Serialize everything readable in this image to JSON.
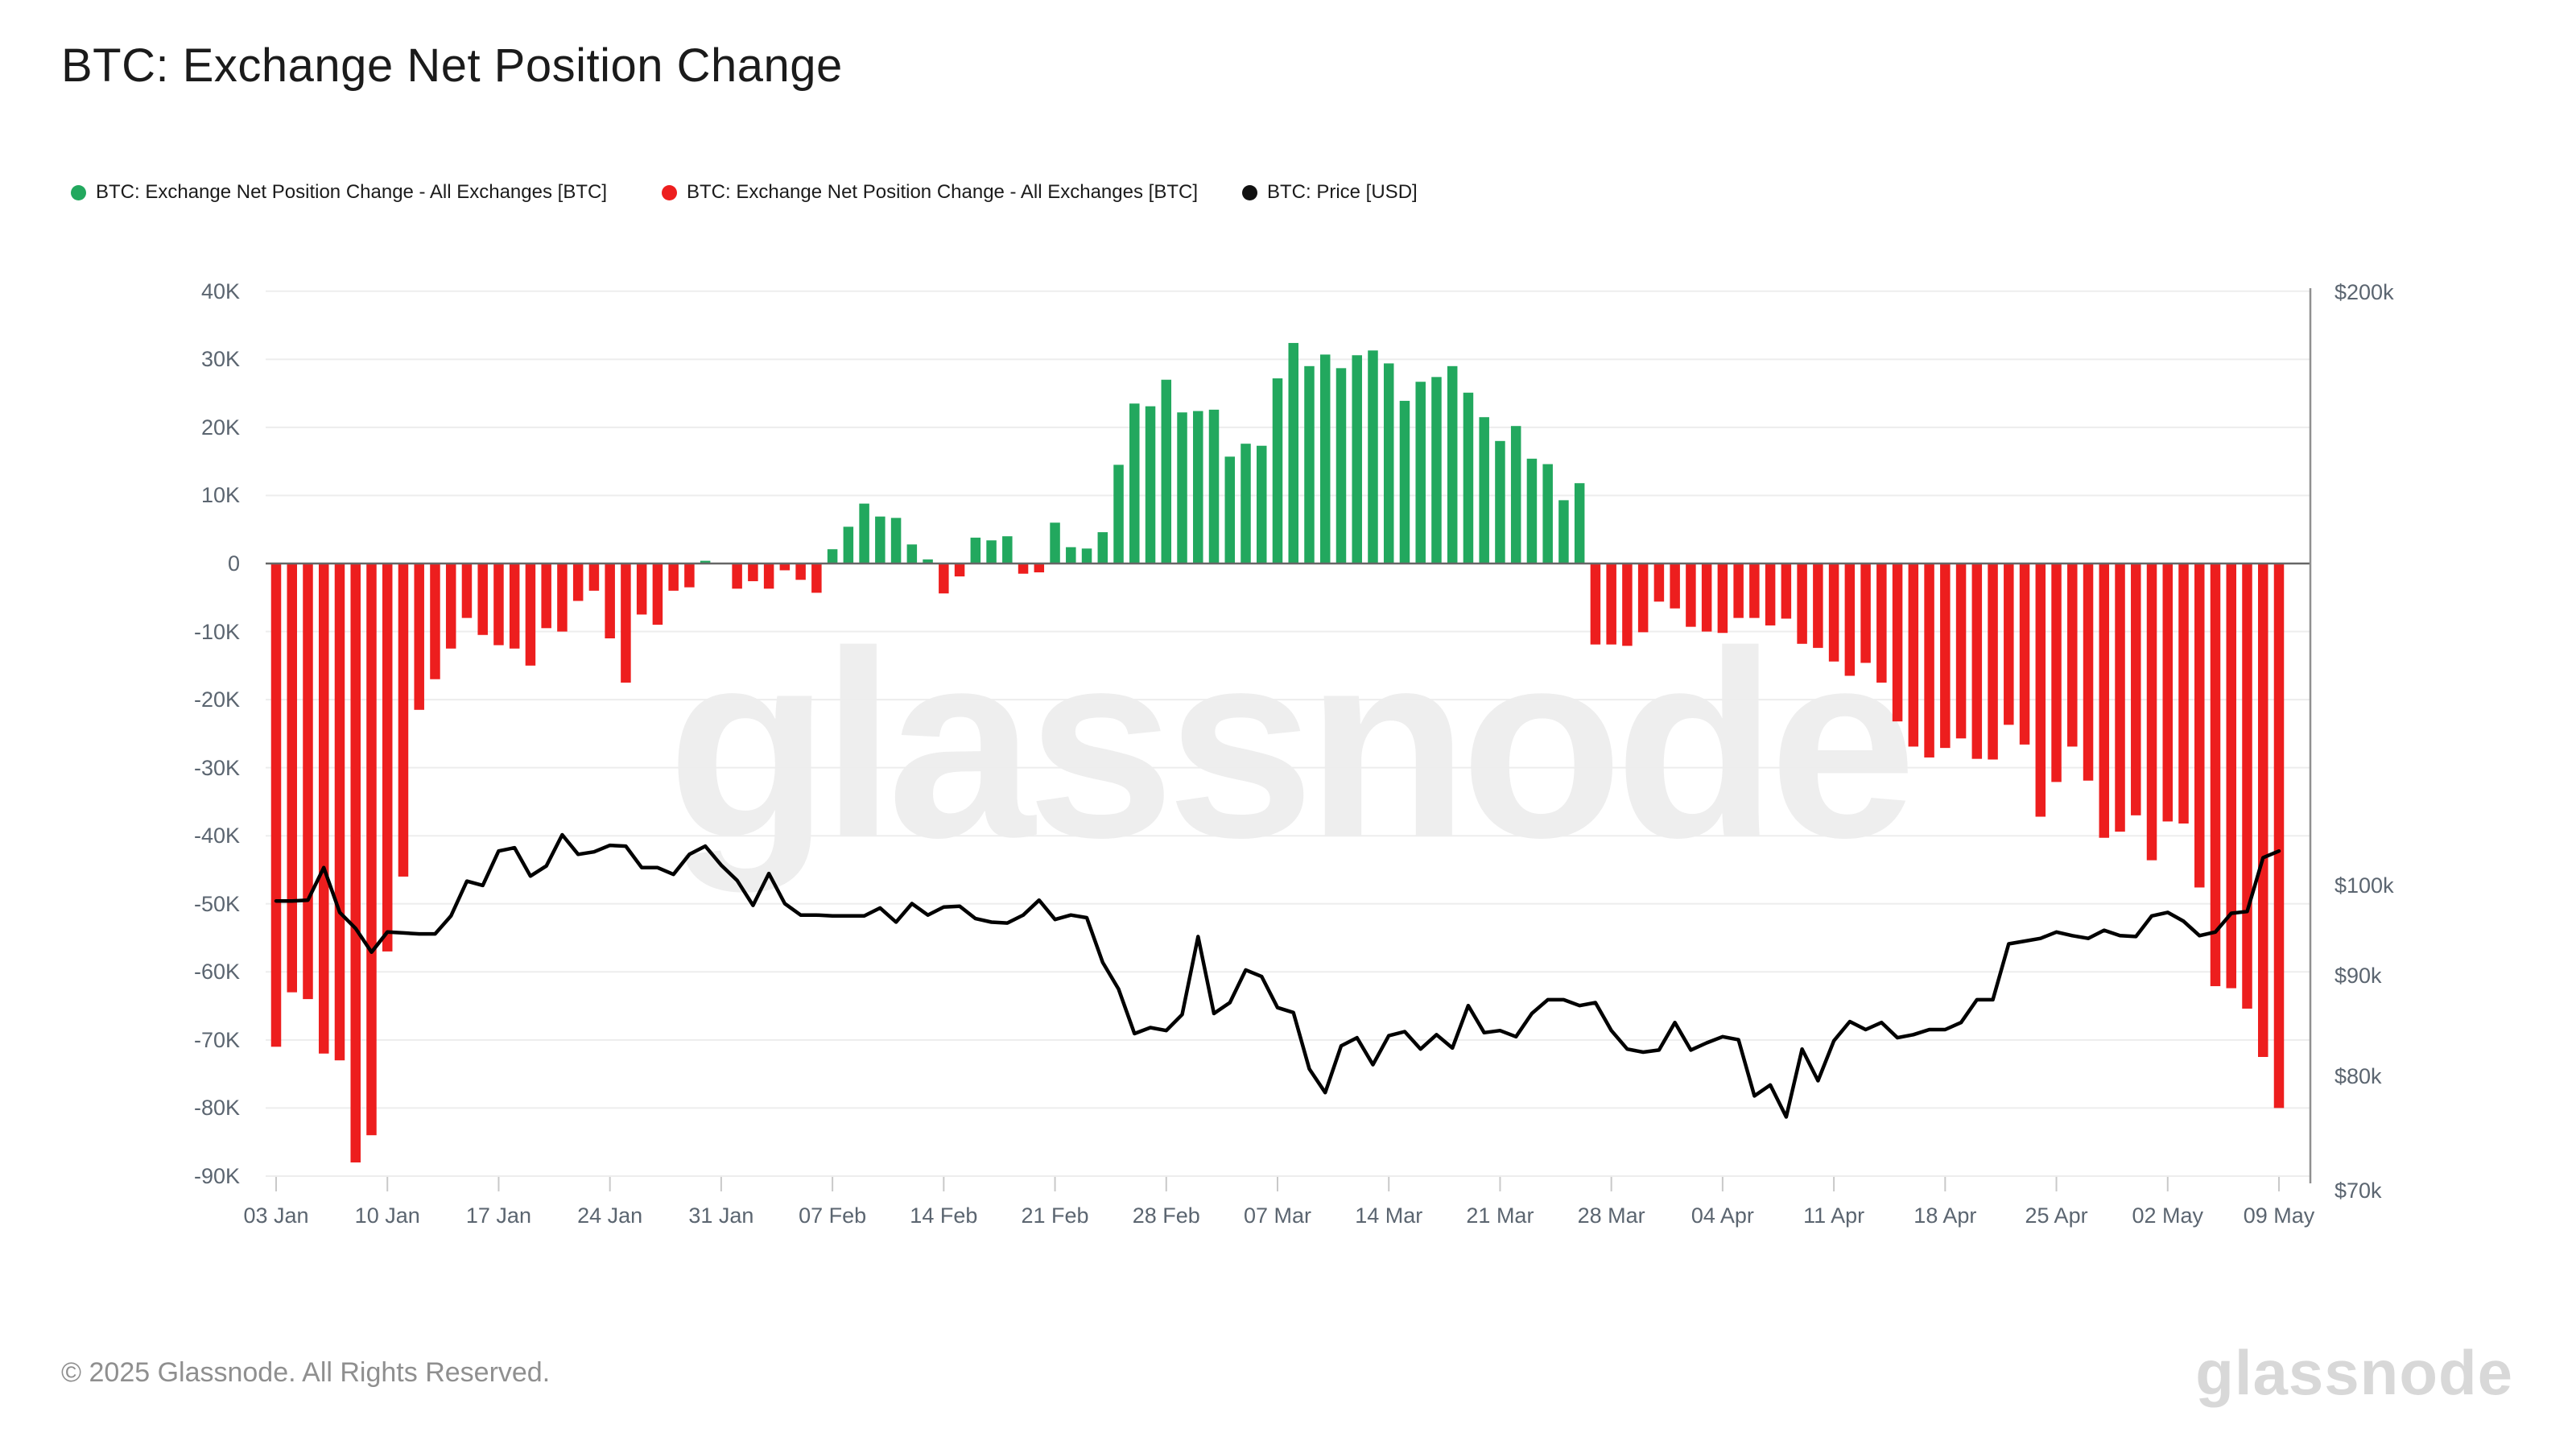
{
  "header": {
    "title": "BTC: Exchange Net Position Change"
  },
  "legend": {
    "items": [
      {
        "label": "BTC: Exchange Net Position Change - All Exchanges [BTC]",
        "color": "#22a85e"
      },
      {
        "label": "BTC: Exchange Net Position Change - All Exchanges [BTC]",
        "color": "#ed1e1e"
      },
      {
        "label": "BTC: Price [USD]",
        "color": "#111111"
      }
    ]
  },
  "watermark": {
    "text": "glassnode"
  },
  "footer": {
    "copyright": "© 2025 Glassnode. All Rights Reserved.",
    "logo_text": "glassnode"
  },
  "chart_data": {
    "type": "bar",
    "title": "BTC: Exchange Net Position Change",
    "start_date": "03 Jan 2025",
    "end_date": "09 May 2025",
    "x_tick_labels": [
      "03 Jan",
      "10 Jan",
      "17 Jan",
      "24 Jan",
      "31 Jan",
      "07 Feb",
      "14 Feb",
      "21 Feb",
      "28 Feb",
      "07 Mar",
      "14 Mar",
      "21 Mar",
      "28 Mar",
      "04 Apr",
      "11 Apr",
      "18 Apr",
      "25 Apr",
      "02 May",
      "09 May"
    ],
    "x_tick_day_indexes": [
      0,
      7,
      14,
      21,
      28,
      35,
      42,
      49,
      56,
      63,
      70,
      77,
      84,
      91,
      98,
      105,
      112,
      119,
      126
    ],
    "y_left": {
      "unit": "BTC",
      "tick_labels": [
        "40K",
        "30K",
        "20K",
        "10K",
        "0",
        "-10K",
        "-20K",
        "-30K",
        "-40K",
        "-50K",
        "-60K",
        "-70K",
        "-80K",
        "-90K"
      ],
      "tick_values_k": [
        40,
        30,
        20,
        10,
        0,
        -10,
        -20,
        -30,
        -40,
        -50,
        -60,
        -70,
        -80,
        -90
      ],
      "range_k": [
        -90,
        40
      ],
      "grid": true
    },
    "y_right": {
      "unit": "USD",
      "scale": "log",
      "tick_labels": [
        "$200k",
        "$100k",
        "$90k",
        "$80k",
        "$70k"
      ],
      "tick_values_k": [
        200,
        100,
        90,
        80,
        70
      ],
      "range_k": [
        70,
        200
      ]
    },
    "series": [
      {
        "name": "BTC: Exchange Net Position Change - All Exchanges [BTC]",
        "type": "bar",
        "axis": "left",
        "unit": "K BTC",
        "positive_color": "#22a85e",
        "negative_color": "#ed1e1e",
        "values": [
          -71,
          -63,
          -64,
          -72,
          -73,
          -88,
          -84,
          -57,
          -46,
          -21.5,
          -17,
          -12.5,
          -8,
          -10.5,
          -12,
          -12.5,
          -15,
          -9.5,
          -10,
          -5.5,
          -4,
          -11,
          -17.5,
          -7.5,
          -9,
          -4,
          -3.5,
          0.4,
          0,
          -3.7,
          -2.6,
          -3.7,
          -1,
          -2.4,
          -4.3,
          2.1,
          5.4,
          8.8,
          6.9,
          6.7,
          2.8,
          0.6,
          -4.4,
          -1.9,
          3.8,
          3.4,
          4,
          -1.5,
          -1.3,
          6,
          2.4,
          2.2,
          4.6,
          14.5,
          23.5,
          23.1,
          27,
          22.2,
          22.4,
          22.6,
          15.7,
          17.6,
          17.3,
          27.2,
          32.4,
          29,
          30.7,
          28.7,
          30.6,
          31.3,
          29.4,
          23.9,
          26.7,
          27.4,
          29,
          25.1,
          21.5,
          18,
          20.2,
          15.4,
          14.6,
          9.3,
          11.8,
          -11.9,
          -11.9,
          -12.1,
          -10.1,
          -5.6,
          -6.6,
          -9.3,
          -10,
          -10.2,
          -8,
          -8,
          -9.1,
          -8.1,
          -11.8,
          -12.4,
          -14.4,
          -16.5,
          -14.6,
          -17.5,
          -23.2,
          -26.9,
          -28.5,
          -27.1,
          -25.7,
          -28.7,
          -28.8,
          -23.7,
          -26.6,
          -37.2,
          -32.1,
          -26.9,
          -31.9,
          -40.3,
          -39.4,
          -37,
          -43.6,
          -37.9,
          -38.2,
          -47.6,
          -62.1,
          -62.4,
          -65.4,
          -72.5,
          -80
        ]
      },
      {
        "name": "BTC: Price [USD]",
        "type": "line",
        "axis": "right",
        "unit": "k USD",
        "color": "#000000",
        "values": [
          98.2,
          98.2,
          98.3,
          102.1,
          96.9,
          95.1,
          92.5,
          94.7,
          94.6,
          94.5,
          94.5,
          96.5,
          100.5,
          100,
          104.1,
          104.5,
          101.1,
          102.3,
          106.1,
          103.7,
          104,
          104.8,
          104.7,
          102.1,
          102.1,
          101.3,
          103.7,
          104.7,
          102.4,
          100.6,
          97.7,
          101.4,
          97.9,
          96.6,
          96.6,
          96.5,
          96.5,
          96.5,
          97.4,
          95.8,
          97.9,
          96.6,
          97.5,
          97.6,
          96.2,
          95.8,
          95.7,
          96.6,
          98.3,
          96.1,
          96.6,
          96.3,
          91.4,
          88.6,
          84.1,
          84.7,
          84.4,
          86,
          94.2,
          86.1,
          87.2,
          90.6,
          89.9,
          86.7,
          86.2,
          80.7,
          78.5,
          82.9,
          83.7,
          81.1,
          83.9,
          84.3,
          82.6,
          84,
          82.7,
          86.9,
          84.2,
          84.4,
          83.8,
          86.1,
          87.5,
          87.5,
          86.9,
          87.2,
          84.4,
          82.6,
          82.3,
          82.5,
          85.2,
          82.5,
          83.2,
          83.8,
          83.5,
          78.2,
          79.2,
          76.3,
          82.6,
          79.6,
          83.4,
          85.3,
          84.5,
          85.2,
          83.7,
          84,
          84.5,
          84.5,
          85.2,
          87.5,
          87.5,
          93.4,
          93.7,
          94,
          94.7,
          94.3,
          94,
          94.9,
          94.3,
          94.2,
          96.5,
          96.9,
          95.9,
          94.3,
          94.7,
          96.8,
          97,
          103.3,
          104.1
        ]
      }
    ],
    "colors": {
      "grid_line": "#ededed",
      "zero_line": "#666666",
      "right_axis_line": "#909090",
      "x_tick_mark": "#c9c9c9",
      "axis_text": "#5b6570"
    },
    "legend_position": "top"
  }
}
